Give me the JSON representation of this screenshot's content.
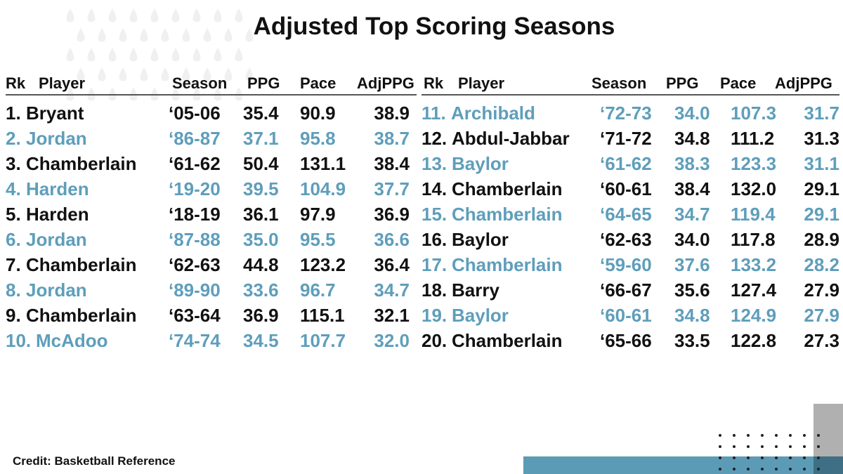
{
  "title": "Adjusted Top Scoring Seasons",
  "tables": [
    {
      "header": [
        "Rk",
        "Player",
        "Season",
        "PPG",
        "Pace",
        "AdjPPG"
      ],
      "rows": [
        [
          "1.",
          "Bryant",
          "‘05-06",
          "35.4",
          "90.9",
          "38.9"
        ],
        [
          "2.",
          "Jordan",
          "‘86-87",
          "37.1",
          "95.8",
          "38.7"
        ],
        [
          "3.",
          "Chamberlain",
          "‘61-62",
          "50.4",
          "131.1",
          "38.4"
        ],
        [
          "4.",
          "Harden",
          "‘19-20",
          "39.5",
          "104.9",
          "37.7"
        ],
        [
          "5.",
          "Harden",
          "‘18-19",
          "36.1",
          "97.9",
          "36.9"
        ],
        [
          "6.",
          "Jordan",
          "‘87-88",
          "35.0",
          "95.5",
          "36.6"
        ],
        [
          "7.",
          "Chamberlain",
          "‘62-63",
          "44.8",
          "123.2",
          "36.4"
        ],
        [
          "8.",
          "Jordan",
          "‘89-90",
          "33.6",
          "96.7",
          "34.7"
        ],
        [
          "9.",
          "Chamberlain",
          "‘63-64",
          "36.9",
          "115.1",
          "32.1"
        ],
        [
          "10.",
          "McAdoo",
          "‘74-74",
          "34.5",
          "107.7",
          "32.0"
        ]
      ]
    },
    {
      "header": [
        "Rk",
        "Player",
        "Season",
        "PPG",
        "Pace",
        "AdjPPG"
      ],
      "rows": [
        [
          "11.",
          "Archibald",
          "‘72-73",
          "34.0",
          "107.3",
          "31.7"
        ],
        [
          "12.",
          "Abdul-Jabbar",
          "‘71-72",
          "34.8",
          "111.2",
          "31.3"
        ],
        [
          "13.",
          "Baylor",
          "‘61-62",
          "38.3",
          "123.3",
          "31.1"
        ],
        [
          "14.",
          "Chamberlain",
          "‘60-61",
          "38.4",
          "132.0",
          "29.1"
        ],
        [
          "15.",
          "Chamberlain",
          "‘64-65",
          "34.7",
          "119.4",
          "29.1"
        ],
        [
          "16.",
          "Baylor",
          "‘62-63",
          "34.0",
          "117.8",
          "28.9"
        ],
        [
          "17.",
          "Chamberlain",
          "‘59-60",
          "37.6",
          "133.2",
          "28.2"
        ],
        [
          "18.",
          "Barry",
          "‘66-67",
          "35.6",
          "127.4",
          "27.9"
        ],
        [
          "19.",
          "Baylor",
          "‘60-61",
          "34.8",
          "124.9",
          "27.9"
        ],
        [
          "20.",
          "Chamberlain",
          "‘65-66",
          "33.5",
          "122.8",
          "27.3"
        ]
      ]
    }
  ],
  "credit": "Credit: Basketball Reference"
}
